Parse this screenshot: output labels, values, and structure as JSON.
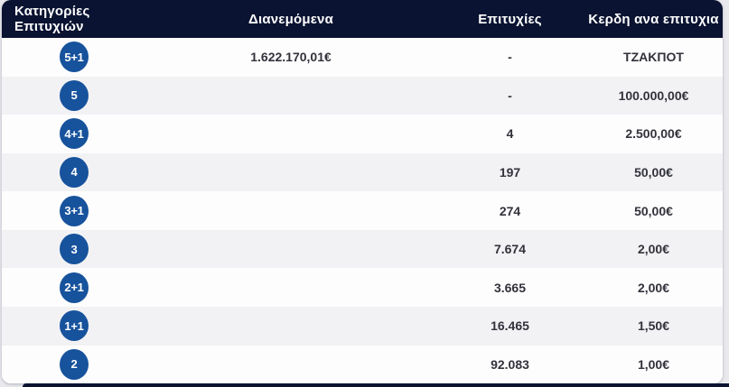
{
  "colors": {
    "header_bg": "#0a1331",
    "header_text": "#ffffff",
    "badge_bg": "#17529c",
    "badge_text": "#ffffff",
    "row_white": "#fdfdfe",
    "row_gray": "#f2f2f5",
    "value_text": "#32323b",
    "page_bg": "#e9e9ed"
  },
  "results_table": {
    "headers": {
      "categories": "Κατηγορίες Επιτυχιών",
      "distributed": "Διανεμόμενα",
      "wins": "Επιτυχίες",
      "prize_per_win": "Κερδη ανα επιτυχια"
    },
    "rows": [
      {
        "category": "5+1",
        "distributed": "1.622.170,01€",
        "wins": "-",
        "prize": "ΤΖΑΚΠΟΤ"
      },
      {
        "category": "5",
        "distributed": "",
        "wins": "-",
        "prize": "100.000,00€"
      },
      {
        "category": "4+1",
        "distributed": "",
        "wins": "4",
        "prize": "2.500,00€"
      },
      {
        "category": "4",
        "distributed": "",
        "wins": "197",
        "prize": "50,00€"
      },
      {
        "category": "3+1",
        "distributed": "",
        "wins": "274",
        "prize": "50,00€"
      },
      {
        "category": "3",
        "distributed": "",
        "wins": "7.674",
        "prize": "2,00€"
      },
      {
        "category": "2+1",
        "distributed": "",
        "wins": "3.665",
        "prize": "2,00€"
      },
      {
        "category": "1+1",
        "distributed": "",
        "wins": "16.465",
        "prize": "1,50€"
      },
      {
        "category": "2",
        "distributed": "",
        "wins": "92.083",
        "prize": "1,00€"
      }
    ]
  }
}
